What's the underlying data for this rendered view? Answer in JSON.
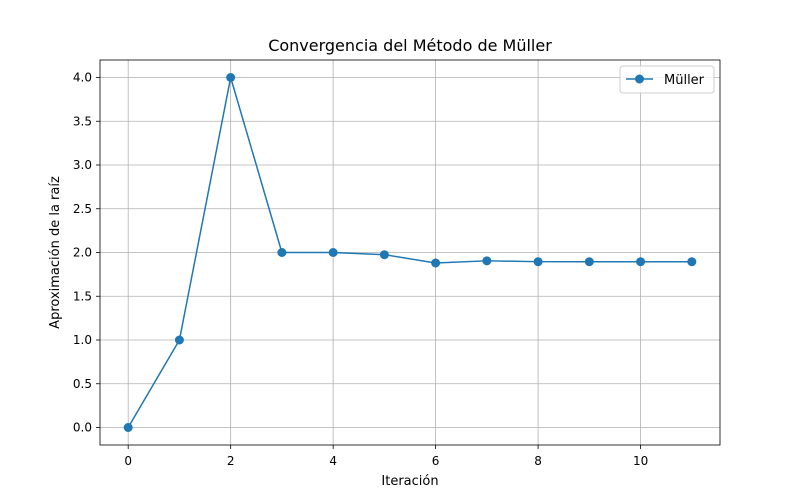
{
  "chart_data": {
    "type": "line",
    "title": "Convergencia del Método de Müller",
    "xlabel": "Iteración",
    "ylabel": "Aproximación de la raíz",
    "xlim": [
      -0.55,
      11.55
    ],
    "ylim": [
      -0.2,
      4.2
    ],
    "xticks": [
      0,
      2,
      4,
      6,
      8,
      10
    ],
    "yticks": [
      0.0,
      0.5,
      1.0,
      1.5,
      2.0,
      2.5,
      3.0,
      3.5,
      4.0
    ],
    "xtick_labels": [
      "0",
      "2",
      "4",
      "6",
      "8",
      "10"
    ],
    "ytick_labels": [
      "0.0",
      "0.5",
      "1.0",
      "1.5",
      "2.0",
      "2.5",
      "3.0",
      "3.5",
      "4.0"
    ],
    "grid": true,
    "legend": {
      "position": "top-right"
    },
    "series": [
      {
        "name": "Müller",
        "color": "#1f77b4",
        "marker": "circle",
        "x": [
          0,
          1,
          2,
          3,
          4,
          5,
          6,
          7,
          8,
          9,
          10,
          11
        ],
        "y": [
          0.0,
          1.0,
          4.0,
          2.0,
          2.0,
          1.975,
          1.88,
          1.905,
          1.895,
          1.895,
          1.895,
          1.895
        ]
      }
    ]
  }
}
